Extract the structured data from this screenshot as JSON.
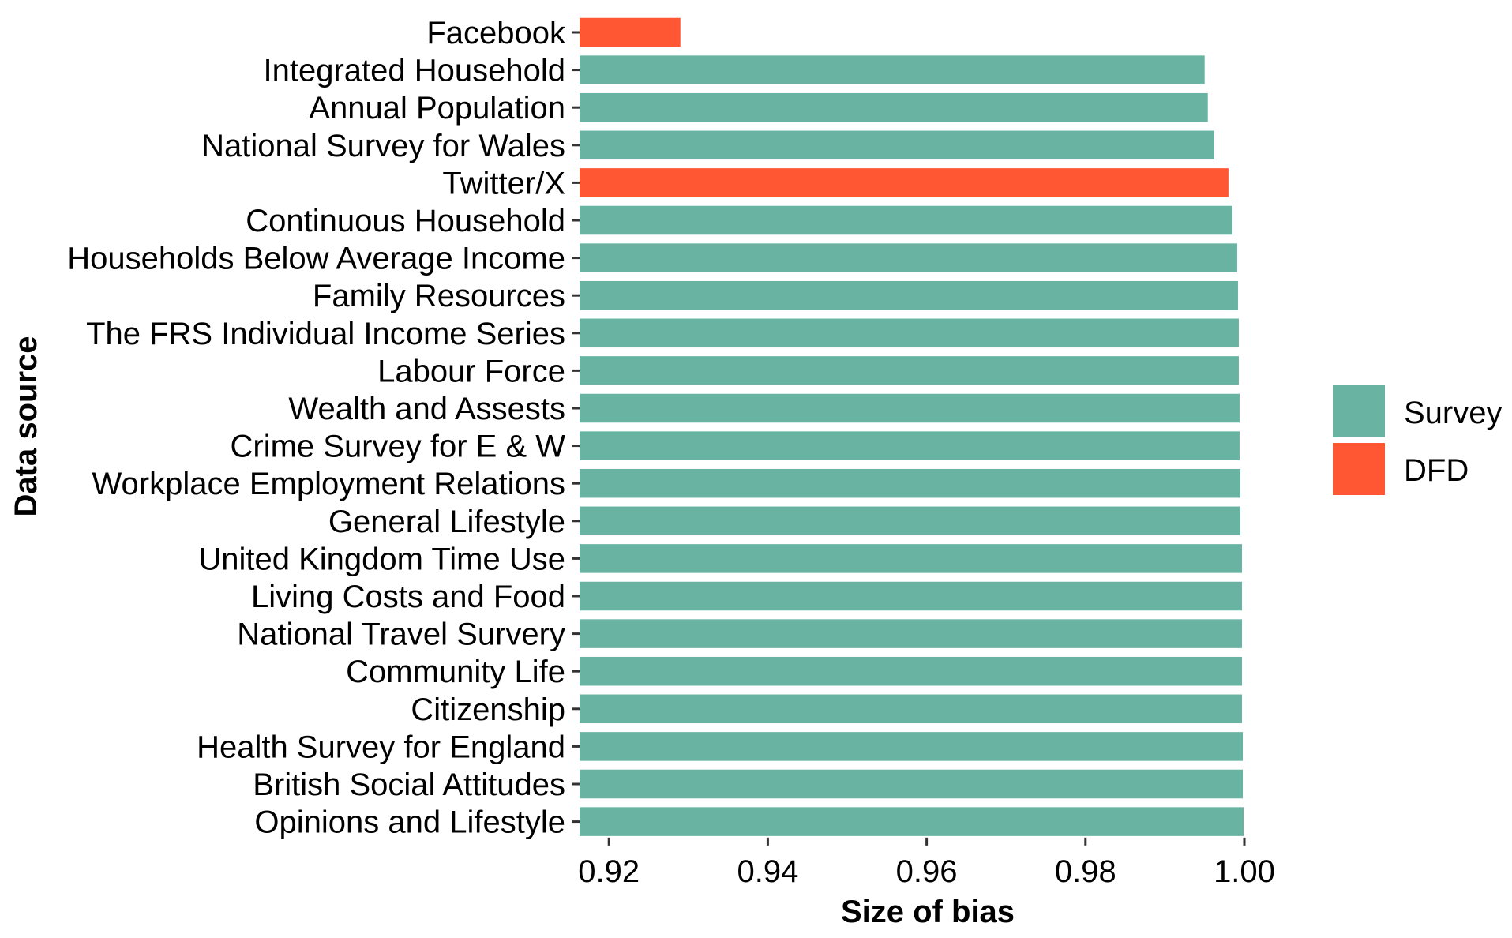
{
  "chart_data": {
    "type": "bar",
    "orientation": "horizontal",
    "title": "",
    "xlabel": "Size of bias",
    "ylabel": "Data source",
    "xlim": [
      0.9163,
      1.0
    ],
    "x_ticks": [
      0.92,
      0.94,
      0.96,
      0.98,
      1.0
    ],
    "x_tick_labels": [
      "0.92",
      "0.94",
      "0.96",
      "0.98",
      "1.00"
    ],
    "grid": false,
    "legend_position": "right",
    "legend": [
      {
        "name": "Survey",
        "color": "#69b3a2"
      },
      {
        "name": "DFD",
        "color": "#ff5733"
      }
    ],
    "categories": [
      "Facebook",
      "Integrated Household",
      "Annual Population",
      "National Survey for Wales",
      "Twitter/X",
      "Continuous Household",
      "Households Below Average Income",
      "Family Resources",
      "The FRS Individual Income Series",
      "Labour Force",
      "Wealth and Assests",
      "Crime Survey for E & W",
      "Workplace Employment Relations",
      "General Lifestyle",
      "United Kingdom Time Use",
      "Living Costs and Food",
      "National Travel Survery",
      "Community Life",
      "Citizenship",
      "Health Survey for England",
      "British Social Attitudes",
      "Opinions and Lifestyle"
    ],
    "values": [
      0.929,
      0.995,
      0.9954,
      0.9962,
      0.998,
      0.9985,
      0.9991,
      0.9992,
      0.9993,
      0.9993,
      0.9994,
      0.9994,
      0.9995,
      0.9995,
      0.9997,
      0.9997,
      0.9997,
      0.9997,
      0.9997,
      0.9998,
      0.9998,
      0.9999
    ],
    "groups": [
      "DFD",
      "Survey",
      "Survey",
      "Survey",
      "DFD",
      "Survey",
      "Survey",
      "Survey",
      "Survey",
      "Survey",
      "Survey",
      "Survey",
      "Survey",
      "Survey",
      "Survey",
      "Survey",
      "Survey",
      "Survey",
      "Survey",
      "Survey",
      "Survey",
      "Survey"
    ]
  }
}
